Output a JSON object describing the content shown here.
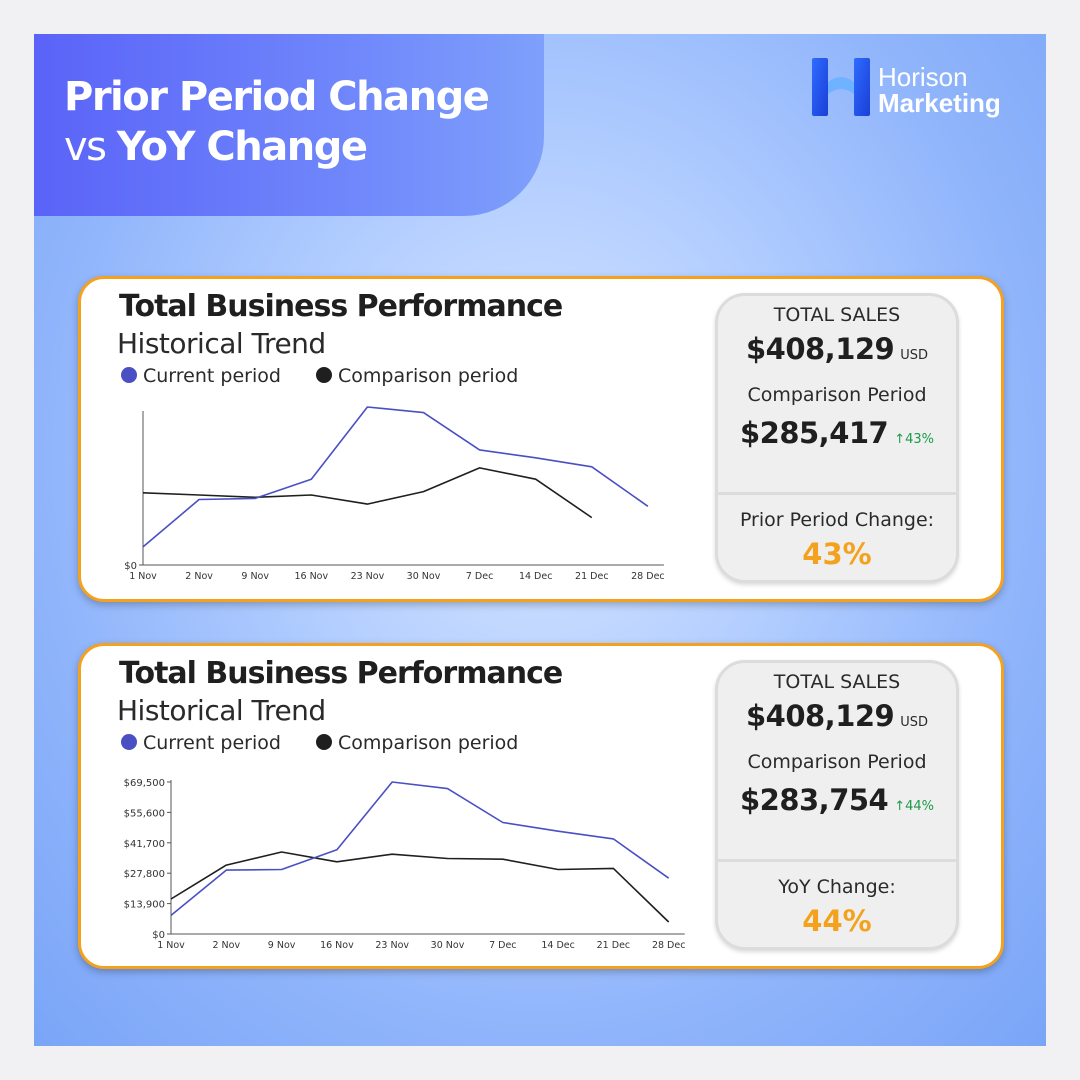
{
  "header": {
    "title_line1": "Prior Period Change",
    "title_line2_prefix": "vs",
    "title_line2_bold": "YoY Change"
  },
  "logo": {
    "line1": "Horison",
    "line2": "Marketing"
  },
  "colors": {
    "current": "#4a4fc4",
    "comparison": "#1f1f1f",
    "accent": "#f4a21e",
    "delta_green": "#1d9a4a"
  },
  "panels": [
    {
      "title": "Total Business Performance",
      "subtitle": "Historical Trend",
      "legend": {
        "current": "Current period",
        "comparison": "Comparison period"
      },
      "stats": {
        "total_label": "TOTAL SALES",
        "total_value": "$408,129",
        "total_unit": "USD",
        "comparison_label": "Comparison Period",
        "comparison_value": "$285,417",
        "comparison_delta": "↑43%",
        "change_label": "Prior Period Change:",
        "change_value": "43%"
      }
    },
    {
      "title": "Total Business Performance",
      "subtitle": "Historical Trend",
      "legend": {
        "current": "Current period",
        "comparison": "Comparison period"
      },
      "stats": {
        "total_label": "TOTAL SALES",
        "total_value": "$408,129",
        "total_unit": "USD",
        "comparison_label": "Comparison Period",
        "comparison_value": "$283,754",
        "comparison_delta": "↑44%",
        "change_label": "YoY Change:",
        "change_value": "44%"
      }
    }
  ],
  "chart_data": [
    {
      "type": "line",
      "title": "Total Business Performance",
      "subtitle": "Historical Trend",
      "categories": [
        "1 Nov",
        "2 Nov",
        "9 Nov",
        "16 Nov",
        "23 Nov",
        "30 Nov",
        "7 Dec",
        "14 Dec",
        "21 Dec",
        "28 Dec"
      ],
      "y_ticks": [
        "$0"
      ],
      "ylim": [
        0,
        70000
      ],
      "series": [
        {
          "name": "Current period",
          "values": [
            8000,
            29000,
            29500,
            38000,
            70000,
            67500,
            51000,
            47500,
            43500,
            26000
          ]
        },
        {
          "name": "Comparison period",
          "values": [
            32000,
            31000,
            30000,
            31000,
            27000,
            32500,
            43000,
            38000,
            21000,
            null
          ]
        }
      ],
      "legend": "top-left",
      "grid": false
    },
    {
      "type": "line",
      "title": "Total Business Performance",
      "subtitle": "Historical Trend",
      "categories": [
        "1 Nov",
        "2 Nov",
        "9 Nov",
        "16 Nov",
        "23 Nov",
        "30 Nov",
        "7 Dec",
        "14 Dec",
        "21 Dec",
        "28 Dec"
      ],
      "y_ticks": [
        "$0",
        "$13,900",
        "$27,800",
        "$41,700",
        "$55,600",
        "$69,500"
      ],
      "ylim": [
        0,
        69500
      ],
      "series": [
        {
          "name": "Current period",
          "values": [
            8500,
            29200,
            29500,
            38500,
            69500,
            66500,
            51000,
            47000,
            43500,
            25500
          ]
        },
        {
          "name": "Comparison period",
          "values": [
            16000,
            31500,
            37500,
            33000,
            36500,
            34500,
            34200,
            29500,
            30000,
            5500
          ]
        }
      ],
      "legend": "top-left",
      "grid": false
    }
  ]
}
